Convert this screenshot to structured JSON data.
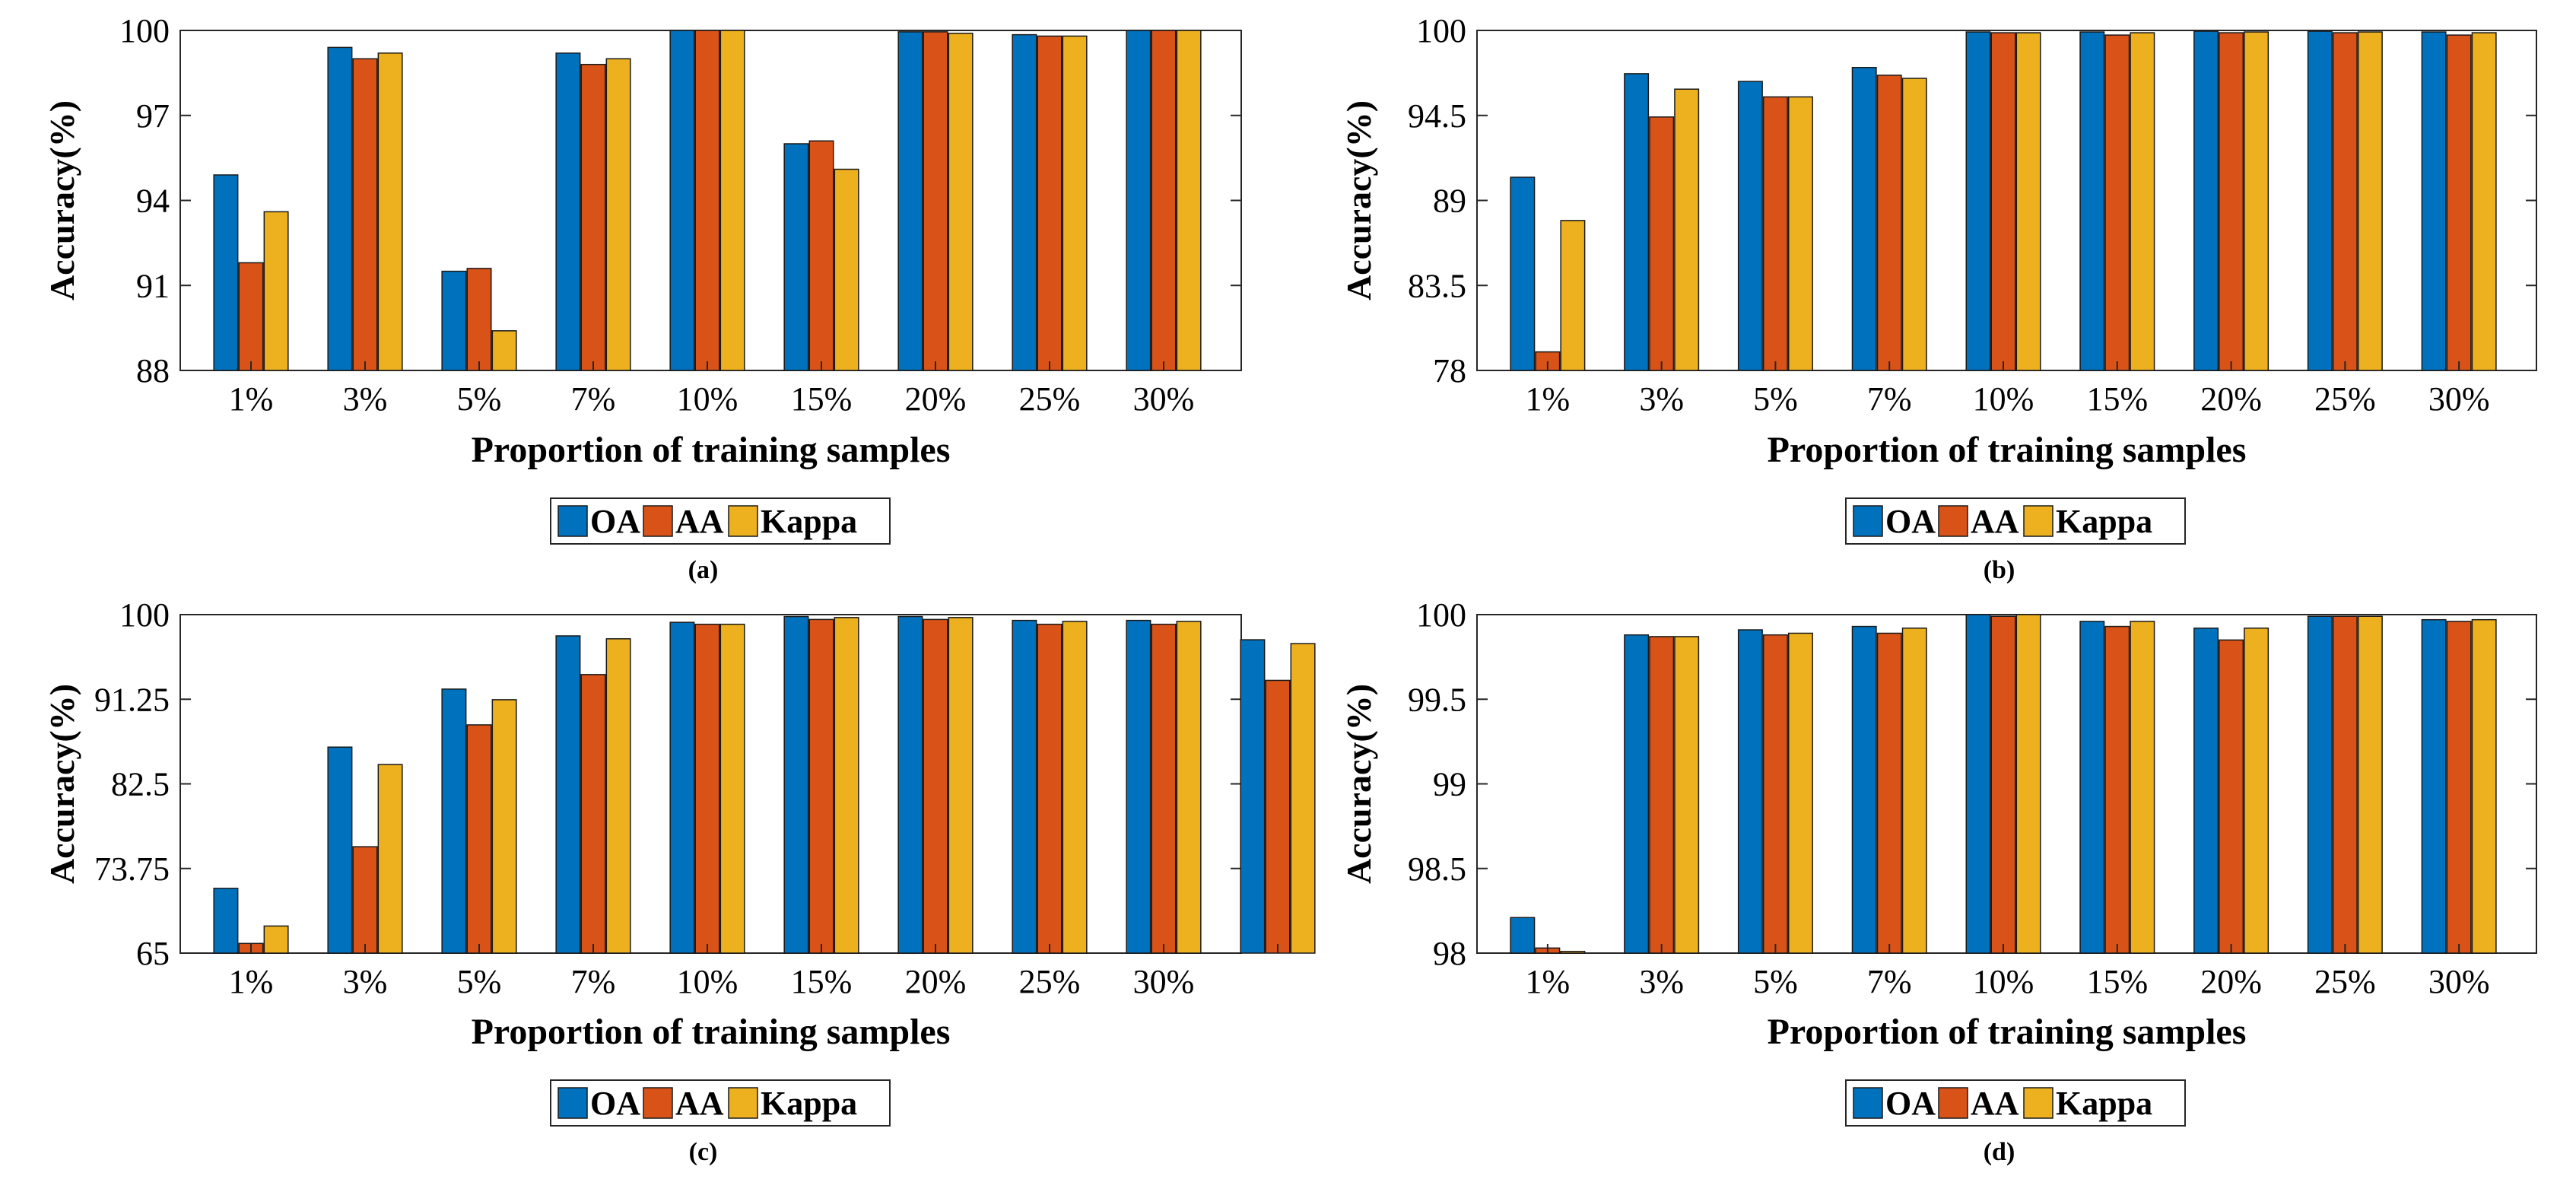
{
  "colors": {
    "OA": "#0072bd",
    "AA": "#d95319",
    "Kappa": "#edb120"
  },
  "chart_data": [
    {
      "type": "bar",
      "caption": "(a)",
      "xlabel": "Proportion of training samples",
      "ylabel": "Accuracy(%)",
      "ylim": [
        88,
        100
      ],
      "yticks": [
        "88",
        "91",
        "94",
        "97",
        "100"
      ],
      "categories": [
        "1%",
        "3%",
        "5%",
        "7%",
        "10%",
        "15%",
        "20%",
        "25%",
        "30%"
      ],
      "series": [
        {
          "name": "OA",
          "values": [
            94.9,
            99.4,
            91.5,
            99.2,
            100,
            96.0,
            99.95,
            99.85,
            100
          ]
        },
        {
          "name": "AA",
          "values": [
            91.8,
            99.0,
            91.6,
            98.8,
            100,
            96.1,
            99.95,
            99.8,
            100
          ]
        },
        {
          "name": "Kappa",
          "values": [
            93.6,
            99.2,
            89.4,
            99.0,
            100,
            95.1,
            99.9,
            99.8,
            100
          ]
        }
      ],
      "legend": [
        "OA",
        "AA",
        "Kappa"
      ]
    },
    {
      "type": "bar",
      "caption": "(b)",
      "xlabel": "Proportion of training samples",
      "ylabel": "Accuracy(%)",
      "ylim": [
        78,
        100
      ],
      "yticks": [
        "78",
        "83.5",
        "89",
        "94.5",
        "100"
      ],
      "categories": [
        "1%",
        "3%",
        "5%",
        "7%",
        "10%",
        "15%",
        "20%",
        "25%",
        "30%"
      ],
      "series": [
        {
          "name": "OA",
          "values": [
            90.5,
            97.2,
            96.7,
            97.6,
            99.9,
            99.9,
            99.95,
            99.95,
            99.9
          ]
        },
        {
          "name": "AA",
          "values": [
            79.2,
            94.4,
            95.7,
            97.1,
            99.85,
            99.7,
            99.85,
            99.85,
            99.7
          ]
        },
        {
          "name": "Kappa",
          "values": [
            87.7,
            96.2,
            95.7,
            96.9,
            99.85,
            99.85,
            99.9,
            99.9,
            99.85
          ]
        }
      ],
      "legend": [
        "OA",
        "AA",
        "Kappa"
      ]
    },
    {
      "type": "bar",
      "caption": "(c)",
      "xlabel": "Proportion of training samples",
      "ylabel": "Accuracy(%)",
      "ylim": [
        65,
        100
      ],
      "yticks": [
        "65",
        "73.75",
        "82.5",
        "91.25",
        "100"
      ],
      "categories": [
        "1%",
        "3%",
        "5%",
        "7%",
        "10%",
        "15%",
        "20%",
        "25%",
        "30%",
        ""
      ],
      "series": [
        {
          "name": "OA",
          "values": [
            71.7,
            86.3,
            92.3,
            97.8,
            99.2,
            99.8,
            99.8,
            99.4,
            99.4,
            97.4
          ]
        },
        {
          "name": "AA",
          "values": [
            66.0,
            76.0,
            88.6,
            93.8,
            99.0,
            99.5,
            99.5,
            99.0,
            99.0,
            93.2
          ]
        },
        {
          "name": "Kappa",
          "values": [
            67.8,
            84.5,
            91.2,
            97.5,
            99.0,
            99.7,
            99.7,
            99.3,
            99.3,
            97.0
          ]
        }
      ],
      "legend": [
        "OA",
        "AA",
        "Kappa"
      ]
    },
    {
      "type": "bar",
      "caption": "(d)",
      "xlabel": "Proportion of training samples",
      "ylabel": "Accuracy(%)",
      "ylim": [
        98,
        100
      ],
      "yticks": [
        "98",
        "98.5",
        "99",
        "99.5",
        "100"
      ],
      "categories": [
        "1%",
        "3%",
        "5%",
        "7%",
        "10%",
        "15%",
        "20%",
        "25%",
        "30%"
      ],
      "series": [
        {
          "name": "OA",
          "values": [
            98.21,
            99.88,
            99.91,
            99.93,
            100,
            99.96,
            99.92,
            99.99,
            99.97
          ]
        },
        {
          "name": "AA",
          "values": [
            98.03,
            99.87,
            99.88,
            99.89,
            99.99,
            99.93,
            99.85,
            99.99,
            99.96
          ]
        },
        {
          "name": "Kappa",
          "values": [
            98.01,
            99.87,
            99.89,
            99.92,
            100,
            99.96,
            99.92,
            99.99,
            99.97
          ]
        }
      ],
      "legend": [
        "OA",
        "AA",
        "Kappa"
      ]
    }
  ]
}
